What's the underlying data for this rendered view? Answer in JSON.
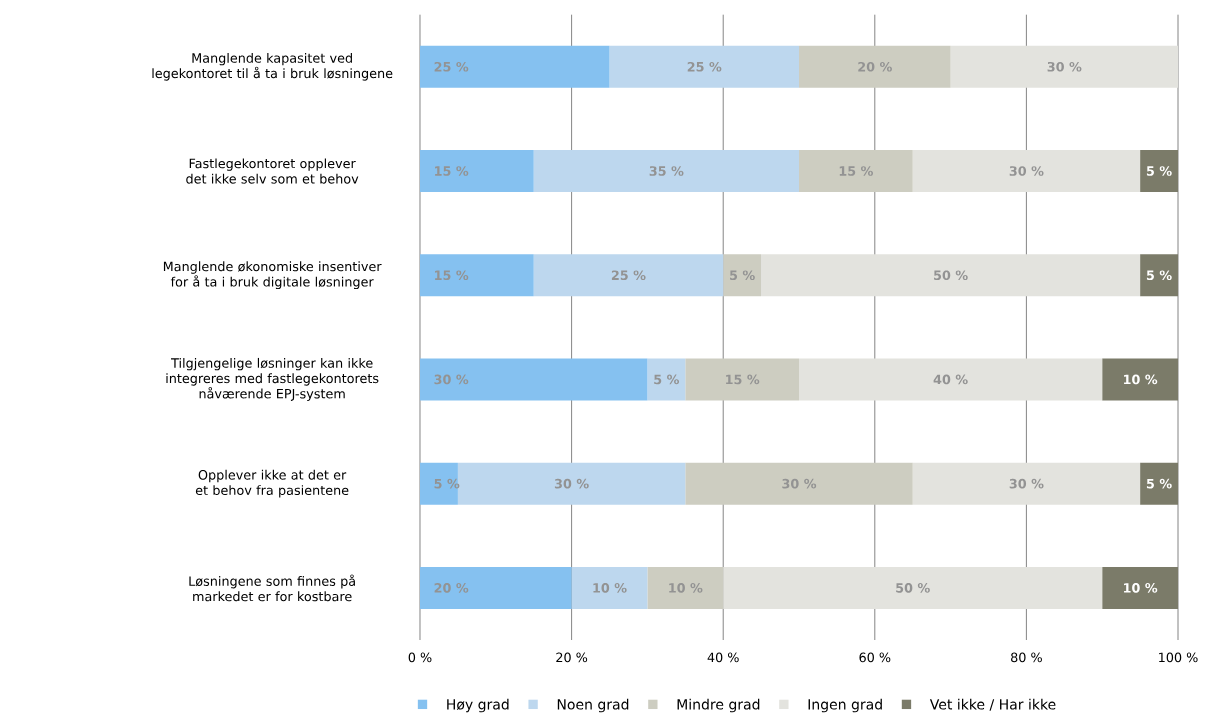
{
  "chart_data": {
    "type": "bar",
    "orientation": "horizontal",
    "stacked": true,
    "categories": [
      "Manglende kapasitet ved legekontoret til å ta i bruk løsningene",
      "Fastlegekontoret opplever det ikke selv som et behov",
      "Manglende økonomiske insentiver for å ta i bruk digitale løsninger",
      "Tilgjengelige løsninger kan ikke integreres med fastlegekontorets nåværende EPJ-system",
      "Opplever ikke at det er et behov fra pasientene",
      "Løsningene som finnes på markedet er for kostbare"
    ],
    "series": [
      {
        "name": "Høy grad",
        "color": "#85c1f0",
        "values": [
          25,
          15,
          15,
          30,
          5,
          20
        ],
        "value_labels": [
          "25 %",
          "15 %",
          "15 %",
          "30 %",
          "5 %",
          "20 %"
        ]
      },
      {
        "name": "Noen grad",
        "color": "#bdd7ee",
        "values": [
          25,
          35,
          25,
          5,
          30,
          10
        ],
        "value_labels": [
          "25 %",
          "35 %",
          "25 %",
          "5 %",
          "30 %",
          "10 %"
        ]
      },
      {
        "name": "Mindre grad",
        "color": "#cdcdc1",
        "values": [
          20,
          15,
          5,
          15,
          30,
          10
        ],
        "value_labels": [
          "20 %",
          "15 %",
          "5 %",
          "15 %",
          "30 %",
          "10 %"
        ]
      },
      {
        "name": "Ingen grad",
        "color": "#e3e3de",
        "values": [
          30,
          30,
          50,
          40,
          30,
          50
        ],
        "value_labels": [
          "30 %",
          "30 %",
          "50 %",
          "40 %",
          "30 %",
          "50 %"
        ]
      },
      {
        "name": "Vet ikke / Har ikke",
        "color": "#7b7b69",
        "values": [
          0,
          5,
          5,
          10,
          5,
          10
        ],
        "value_labels": [
          null,
          "5 %",
          "5 %",
          "10 %",
          "5 %",
          "10 %"
        ]
      }
    ],
    "xlim": [
      0,
      100
    ],
    "xticks": [
      {
        "value": 0,
        "label": "0 %"
      },
      {
        "value": 20,
        "label": "20 %"
      },
      {
        "value": 40,
        "label": "40 %"
      },
      {
        "value": 60,
        "label": "60 %"
      },
      {
        "value": 80,
        "label": "80 %"
      },
      {
        "value": 100,
        "label": "100 %"
      }
    ],
    "grid": "x",
    "legend": "bottom"
  }
}
